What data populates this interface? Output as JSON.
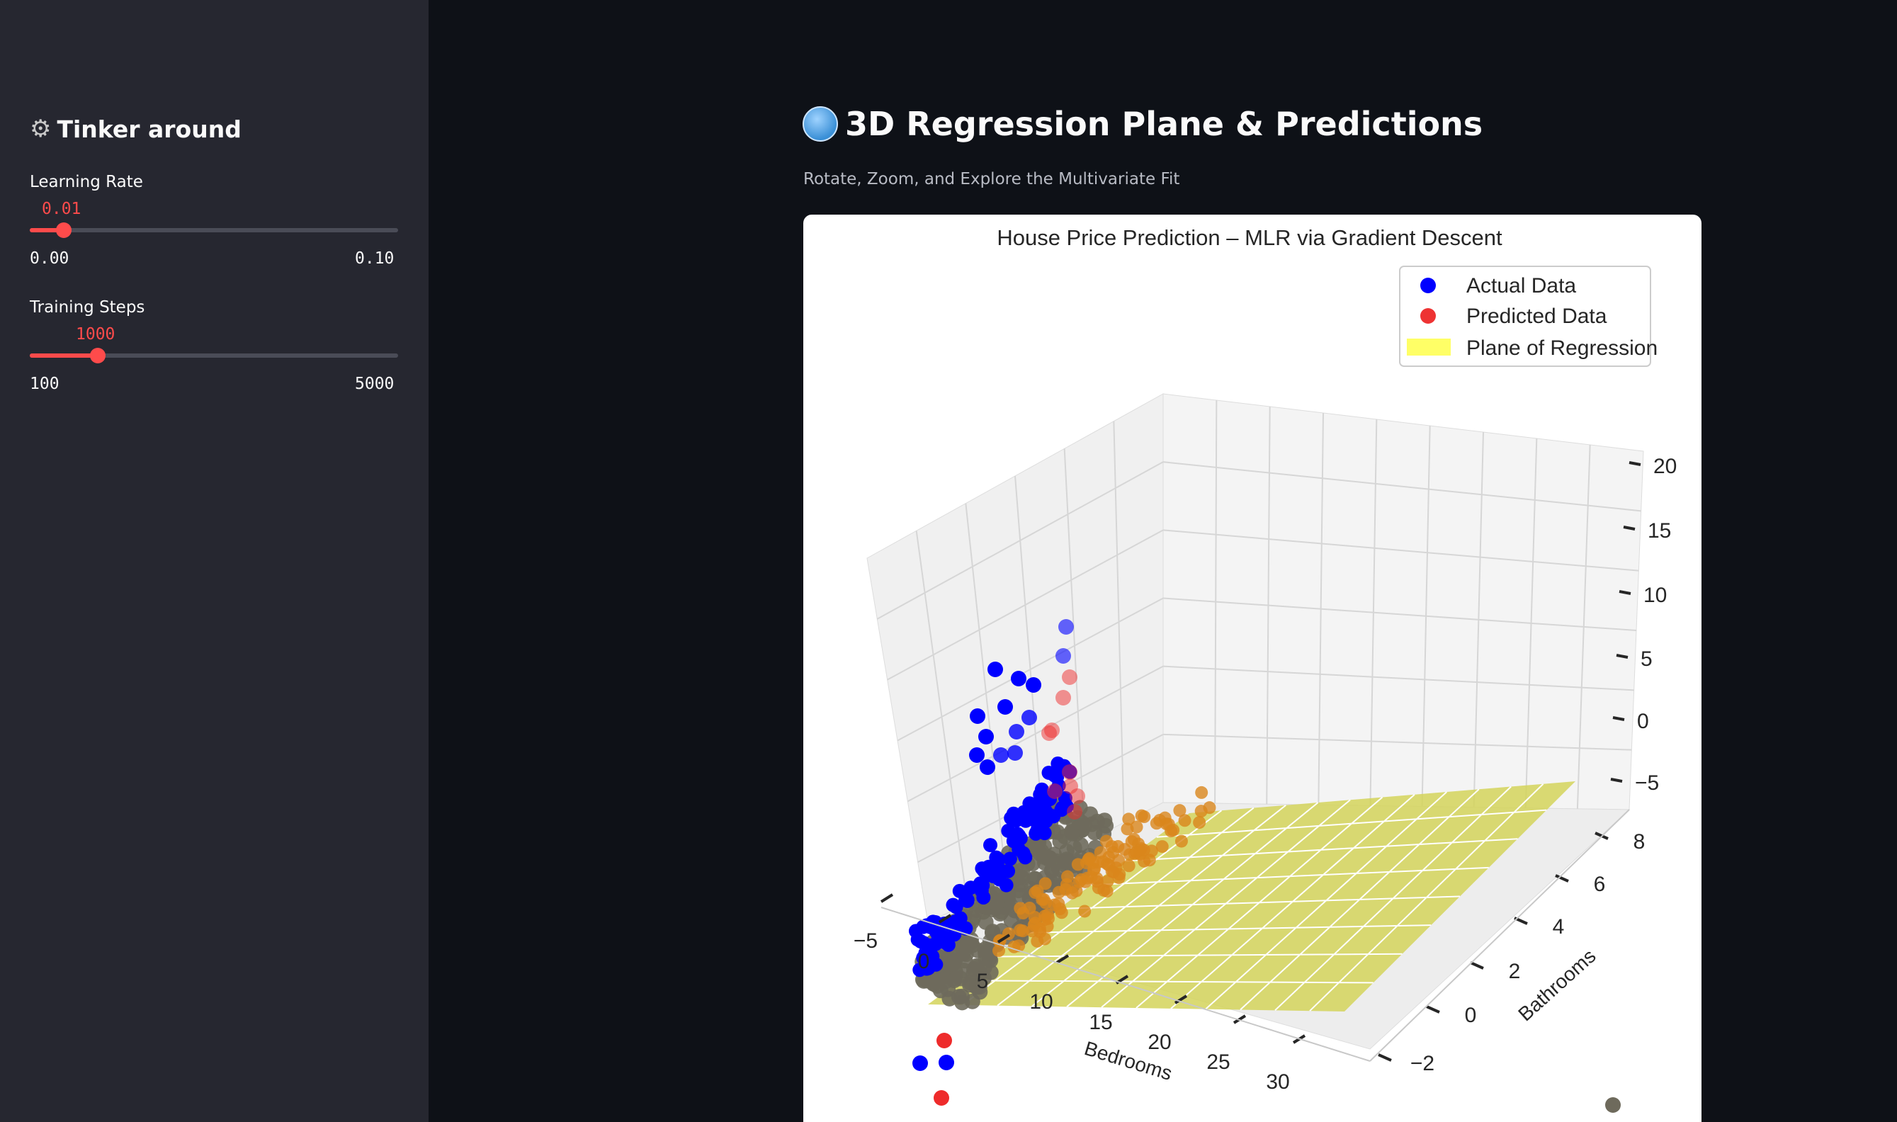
{
  "sidebar": {
    "title": "Tinker around",
    "title_icon": "gear-icon",
    "sliders": [
      {
        "label": "Learning Rate",
        "value": "0.01",
        "min": "0.00",
        "max": "0.10",
        "fraction": 0.1
      },
      {
        "label": "Training Steps",
        "value": "1000",
        "min": "100",
        "max": "5000",
        "fraction": 0.18
      }
    ]
  },
  "main": {
    "title": "3D Regression Plane & Predictions",
    "title_icon": "globe-icon",
    "subtitle": "Rotate, Zoom, and Explore the Multivariate Fit"
  },
  "chart_data": {
    "type": "scatter",
    "title": "House Price Prediction – MLR via Gradient Descent",
    "xlabel": "Bedrooms",
    "ylabel": "Bathrooms",
    "zlabel": "",
    "xticks": [
      "−5",
      "0",
      "5",
      "10",
      "15",
      "20",
      "25",
      "30"
    ],
    "yticks": [
      "−2",
      "0",
      "2",
      "4",
      "6",
      "8"
    ],
    "zticks": [
      "−5",
      "0",
      "5",
      "10",
      "15",
      "20"
    ],
    "xlim": [
      -5,
      33
    ],
    "ylim": [
      -2,
      8
    ],
    "zlim": [
      -5,
      20
    ],
    "legend": [
      {
        "name": "Actual Data",
        "color": "#0000ff"
      },
      {
        "name": "Predicted Data",
        "color": "#ee3333"
      },
      {
        "name": "Plane of Regression",
        "color": "#ffff66"
      }
    ],
    "legend_position": "top-right",
    "colors": {
      "actual": "#0000ff",
      "predicted": "#ee2b2b",
      "plane": "#d4d45a",
      "overlap": "#6e6a5c"
    }
  }
}
